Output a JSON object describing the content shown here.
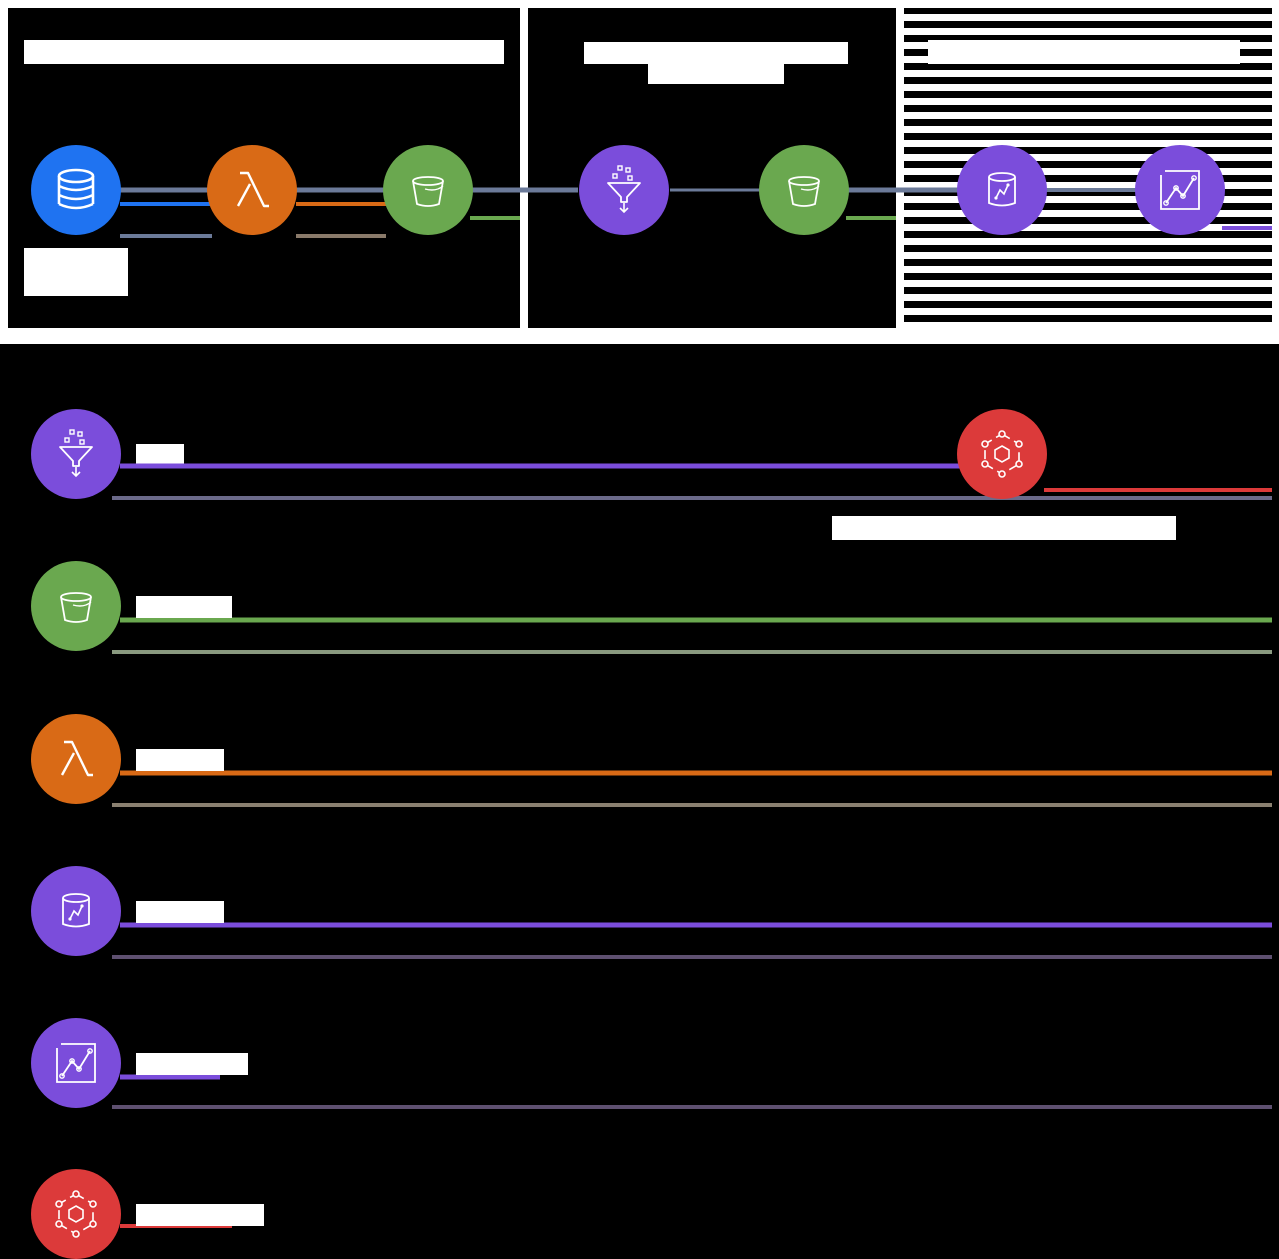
{
  "colors": {
    "blue": "#1f73f1",
    "orange": "#d96a16",
    "green": "#6aa84f",
    "purple": "#7b4ddb",
    "red": "#dc3a3a",
    "gray_line": "#6b7a99"
  },
  "pipeline": {
    "sections": [
      {
        "title": "",
        "subtitle": ""
      },
      {
        "title": "",
        "subtitle": ""
      },
      {
        "title": "",
        "subtitle": ""
      }
    ],
    "nodes": [
      {
        "icon": "database-icon",
        "color": "blue",
        "caption": ""
      },
      {
        "icon": "lambda-icon",
        "color": "orange",
        "caption": ""
      },
      {
        "icon": "bucket-icon",
        "color": "green",
        "caption": ""
      },
      {
        "icon": "funnel-icon",
        "color": "purple",
        "caption": ""
      },
      {
        "icon": "bucket-icon",
        "color": "green",
        "caption": ""
      },
      {
        "icon": "analytics-db-icon",
        "color": "purple",
        "caption": ""
      },
      {
        "icon": "chart-icon",
        "color": "purple",
        "caption": ""
      }
    ]
  },
  "legend": {
    "items": [
      {
        "icon": "funnel-icon",
        "color": "purple",
        "label": ""
      },
      {
        "icon": "bucket-icon",
        "color": "green",
        "label": ""
      },
      {
        "icon": "lambda-icon",
        "color": "orange",
        "label": ""
      },
      {
        "icon": "analytics-db-icon",
        "color": "purple",
        "label": ""
      },
      {
        "icon": "chart-icon",
        "color": "purple",
        "label": ""
      },
      {
        "icon": "eventbridge-icon",
        "color": "red",
        "label": ""
      }
    ],
    "side_node": {
      "icon": "eventbridge-icon",
      "color": "red",
      "caption": ""
    }
  }
}
